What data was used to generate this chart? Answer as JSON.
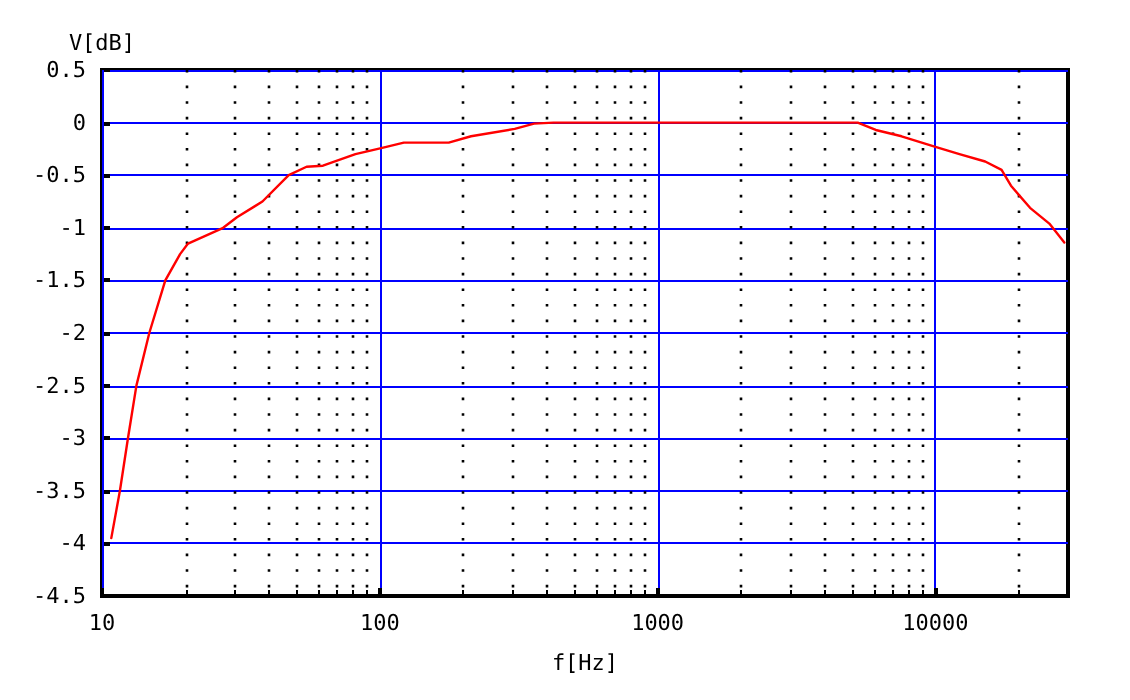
{
  "chart_data": {
    "type": "line",
    "xlabel": "f[Hz]",
    "ylabel": "V[dB]",
    "log": "x",
    "grid": true,
    "marker": "none",
    "line_style": "solid",
    "x": [
      10.8,
      11.6,
      12.4,
      13.3,
      14.8,
      16.9,
      19.1,
      20.4,
      27.3,
      30.6,
      37.8,
      47,
      54.5,
      62.4,
      81.7,
      102,
      122,
      177,
      213,
      306,
      359,
      422,
      5250,
      6100,
      7550,
      10000,
      12200,
      15100,
      17300,
      18700,
      21900,
      25700,
      29100
    ],
    "series": [
      {
        "color": "#ff0000",
        "values": [
          -3.95,
          -3.5,
          -3,
          -2.5,
          -2,
          -1.5,
          -1.25,
          -1.15,
          -1,
          -0.9,
          -0.75,
          -0.5,
          -0.42,
          -0.41,
          -0.3,
          -0.24,
          -0.19,
          -0.19,
          -0.13,
          -0.06,
          -0.01,
          0,
          0,
          -0.07,
          -0.13,
          -0.23,
          -0.3,
          -0.37,
          -0.45,
          -0.6,
          -0.81,
          -0.96,
          -1.14
        ]
      }
    ],
    "xlim": [
      10,
      30000
    ],
    "xticks": [
      10,
      {
        "value": 20,
        "label": null
      },
      {
        "value": 30,
        "label": null
      },
      {
        "value": 40,
        "label": null
      },
      {
        "value": 50,
        "label": null
      },
      {
        "value": 60,
        "label": null
      },
      {
        "value": 70,
        "label": null
      },
      {
        "value": 80,
        "label": null
      },
      {
        "value": 90,
        "label": null
      },
      100,
      {
        "value": 200,
        "label": null
      },
      {
        "value": 300,
        "label": null
      },
      {
        "value": 400,
        "label": null
      },
      {
        "value": 500,
        "label": null
      },
      {
        "value": 600,
        "label": null
      },
      {
        "value": 700,
        "label": null
      },
      {
        "value": 800,
        "label": null
      },
      {
        "value": 900,
        "label": null
      },
      1000,
      {
        "value": 2000,
        "label": null
      },
      {
        "value": 3000,
        "label": null
      },
      {
        "value": 4000,
        "label": null
      },
      {
        "value": 5000,
        "label": null
      },
      {
        "value": 6000,
        "label": null
      },
      {
        "value": 7000,
        "label": null
      },
      {
        "value": 8000,
        "label": null
      },
      {
        "value": 9000,
        "label": null
      },
      10000,
      {
        "value": 20000,
        "label": null
      }
    ],
    "ylim": [
      -4.5,
      0.5
    ],
    "yticks": [
      -4.5,
      -4,
      -3.5,
      -3,
      -2.5,
      -2,
      -1.5,
      -1,
      -0.5,
      0,
      0.5
    ]
  }
}
